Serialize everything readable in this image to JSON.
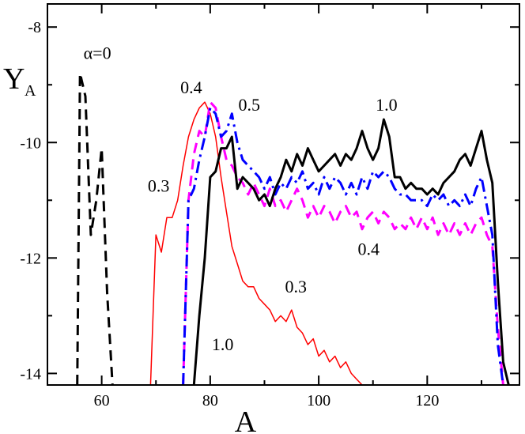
{
  "chart_data": {
    "type": "line",
    "xlabel": "A",
    "ylabel": "Y",
    "ylabel_sub": "A",
    "xlim": [
      50,
      137
    ],
    "ylim": [
      -14.2,
      -7.6
    ],
    "x_ticks": [
      60,
      80,
      100,
      120
    ],
    "y_ticks": [
      -8,
      -10,
      -12,
      -14
    ],
    "grid": false,
    "series": [
      {
        "key": "alpha0",
        "color": "#000000",
        "style": "dashed",
        "x": [
          55.5,
          56,
          57,
          58,
          59,
          60,
          61,
          62
        ],
        "y": [
          -14.2,
          -8.8,
          -9.2,
          -11.6,
          -11.0,
          -10.1,
          -12.6,
          -14.2
        ]
      },
      {
        "key": "alpha03",
        "color": "#ff0000",
        "style": "solid",
        "x": [
          69,
          70,
          71,
          72,
          73,
          74,
          75,
          76,
          77,
          78,
          79,
          80,
          81,
          82,
          83,
          84,
          85,
          86,
          87,
          88,
          89,
          90,
          91,
          92,
          93,
          94,
          95,
          96,
          97,
          98,
          99,
          100,
          101,
          102,
          103,
          104,
          105,
          106,
          107,
          108
        ],
        "y": [
          -14.2,
          -11.6,
          -11.9,
          -11.3,
          -11.3,
          -11.0,
          -10.4,
          -9.9,
          -9.6,
          -9.4,
          -9.3,
          -9.5,
          -9.9,
          -10.6,
          -11.2,
          -11.8,
          -12.1,
          -12.4,
          -12.5,
          -12.5,
          -12.7,
          -12.8,
          -12.9,
          -13.1,
          -13.0,
          -13.1,
          -12.9,
          -13.2,
          -13.3,
          -13.5,
          -13.4,
          -13.7,
          -13.6,
          -13.8,
          -13.7,
          -13.9,
          -13.8,
          -14.0,
          -14.1,
          -14.2
        ]
      },
      {
        "key": "alpha04",
        "color": "#ff00ff",
        "style": "dashed",
        "x": [
          75,
          76,
          77,
          78,
          79,
          80,
          81,
          82,
          83,
          84,
          85,
          86,
          87,
          88,
          89,
          90,
          91,
          92,
          93,
          94,
          95,
          96,
          97,
          98,
          99,
          100,
          101,
          102,
          103,
          104,
          105,
          106,
          107,
          108,
          109,
          110,
          111,
          112,
          113,
          114,
          115,
          116,
          117,
          118,
          119,
          120,
          121,
          122,
          123,
          124,
          125,
          126,
          127,
          128,
          129,
          130,
          131,
          132,
          133,
          134
        ],
        "y": [
          -14.2,
          -11.0,
          -10.2,
          -9.8,
          -9.9,
          -9.3,
          -9.4,
          -9.9,
          -10.3,
          -10.4,
          -10.6,
          -10.7,
          -10.9,
          -10.7,
          -10.9,
          -11.1,
          -10.8,
          -11.1,
          -11.0,
          -11.2,
          -11.0,
          -10.8,
          -11.0,
          -11.3,
          -11.1,
          -11.3,
          -11.1,
          -11.2,
          -11.4,
          -11.2,
          -11.1,
          -11.3,
          -11.2,
          -11.5,
          -11.3,
          -11.2,
          -11.4,
          -11.2,
          -11.3,
          -11.5,
          -11.4,
          -11.5,
          -11.3,
          -11.5,
          -11.3,
          -11.5,
          -11.3,
          -11.6,
          -11.4,
          -11.6,
          -11.4,
          -11.6,
          -11.4,
          -11.6,
          -11.4,
          -11.3,
          -11.6,
          -11.8,
          -13.2,
          -14.2
        ]
      },
      {
        "key": "alpha05",
        "color": "#0000ff",
        "style": "dash-dot",
        "x": [
          75,
          76,
          77,
          78,
          79,
          80,
          81,
          82,
          83,
          84,
          85,
          86,
          87,
          88,
          89,
          90,
          91,
          92,
          93,
          94,
          95,
          96,
          97,
          98,
          99,
          100,
          101,
          102,
          103,
          104,
          105,
          106,
          107,
          108,
          109,
          110,
          111,
          112,
          113,
          114,
          115,
          116,
          117,
          118,
          119,
          120,
          121,
          122,
          123,
          124,
          125,
          126,
          127,
          128,
          129,
          130,
          131,
          132,
          133,
          134
        ],
        "y": [
          -14.2,
          -11.0,
          -10.8,
          -10.3,
          -9.9,
          -9.4,
          -9.5,
          -9.9,
          -9.8,
          -9.5,
          -10.0,
          -10.3,
          -10.4,
          -10.5,
          -10.6,
          -10.8,
          -10.6,
          -10.9,
          -10.7,
          -10.8,
          -10.6,
          -10.7,
          -10.5,
          -10.8,
          -10.7,
          -10.9,
          -10.6,
          -10.8,
          -10.6,
          -10.7,
          -10.9,
          -10.7,
          -10.9,
          -10.6,
          -10.8,
          -10.5,
          -10.6,
          -10.5,
          -10.6,
          -10.8,
          -10.9,
          -10.9,
          -11.0,
          -11.0,
          -11.0,
          -11.1,
          -10.9,
          -11.0,
          -10.9,
          -11.1,
          -11.0,
          -11.1,
          -10.9,
          -11.1,
          -10.8,
          -10.6,
          -11.1,
          -11.6,
          -13.5,
          -14.2
        ]
      },
      {
        "key": "alpha10",
        "color": "#000000",
        "style": "solid",
        "x": [
          77,
          78,
          79,
          80,
          81,
          82,
          83,
          84,
          85,
          86,
          87,
          88,
          89,
          90,
          91,
          92,
          93,
          94,
          95,
          96,
          97,
          98,
          99,
          100,
          101,
          102,
          103,
          104,
          105,
          106,
          107,
          108,
          109,
          110,
          111,
          112,
          113,
          114,
          115,
          116,
          117,
          118,
          119,
          120,
          121,
          122,
          123,
          124,
          125,
          126,
          127,
          128,
          129,
          130,
          131,
          132,
          133,
          134,
          135
        ],
        "y": [
          -14.2,
          -13.0,
          -12.0,
          -10.6,
          -10.5,
          -10.1,
          -10.1,
          -9.9,
          -10.8,
          -10.6,
          -10.7,
          -10.8,
          -11.0,
          -10.9,
          -11.1,
          -10.8,
          -10.6,
          -10.3,
          -10.5,
          -10.2,
          -10.4,
          -10.1,
          -10.3,
          -10.5,
          -10.4,
          -10.3,
          -10.2,
          -10.4,
          -10.2,
          -10.3,
          -10.1,
          -9.8,
          -10.1,
          -10.3,
          -10.1,
          -9.6,
          -9.9,
          -10.6,
          -10.6,
          -10.8,
          -10.7,
          -10.8,
          -10.8,
          -10.9,
          -10.8,
          -10.9,
          -10.7,
          -10.6,
          -10.5,
          -10.3,
          -10.2,
          -10.4,
          -10.1,
          -9.8,
          -10.3,
          -10.7,
          -12.4,
          -13.8,
          -14.2
        ]
      }
    ],
    "annotations": [
      {
        "key": "a0",
        "text": "α=0",
        "x": 59.2,
        "y": -8.55
      },
      {
        "key": "a03_left",
        "text": "0.3",
        "x": 70.5,
        "y": -10.85
      },
      {
        "key": "a03_right",
        "text": "0.3",
        "x": 95.8,
        "y": -12.6
      },
      {
        "key": "a04_top",
        "text": "0.4",
        "x": 76.5,
        "y": -9.15
      },
      {
        "key": "a04_bottom",
        "text": "0.4",
        "x": 109.2,
        "y": -11.95
      },
      {
        "key": "a05",
        "text": "0.5",
        "x": 87.2,
        "y": -9.45
      },
      {
        "key": "a10_top",
        "text": "1.0",
        "x": 112.5,
        "y": -9.45
      },
      {
        "key": "a10_bottom",
        "text": "1.0",
        "x": 82.3,
        "y": -13.6
      }
    ]
  }
}
